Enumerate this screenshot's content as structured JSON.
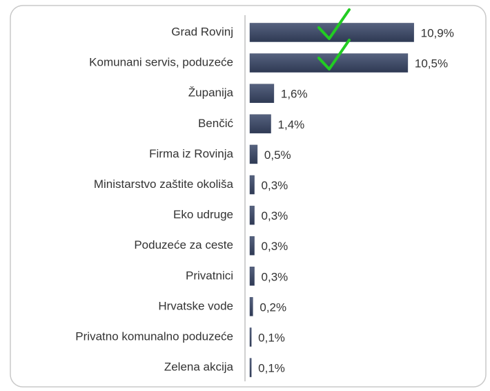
{
  "chart_data": {
    "type": "bar",
    "orientation": "horizontal",
    "categories": [
      "Grad Rovinj",
      "Komunani servis, poduzeće",
      "Županija",
      "Benčić",
      "Firma iz Rovinja",
      "Ministarstvo zaštite okoliša",
      "Eko udruge",
      "Poduzeće za ceste",
      "Privatnici",
      "Hrvatske vode",
      "Privatno komunalno poduzeće",
      "Zelena akcija"
    ],
    "values": [
      10.9,
      10.5,
      1.6,
      1.4,
      0.5,
      0.3,
      0.3,
      0.3,
      0.3,
      0.2,
      0.1,
      0.1
    ],
    "value_labels": [
      "10,9%",
      "10,5%",
      "1,6%",
      "1,4%",
      "0,5%",
      "0,3%",
      "0,3%",
      "0,3%",
      "0,3%",
      "0,2%",
      "0,1%",
      "0,1%"
    ],
    "color": "#3f4b68"
  }
}
